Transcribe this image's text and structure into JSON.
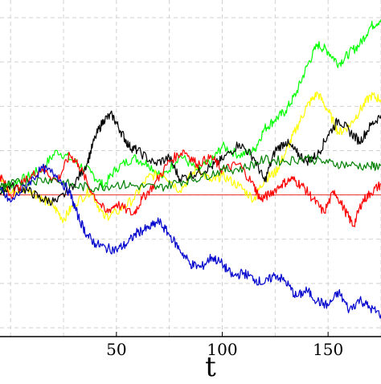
{
  "chart_data": {
    "type": "line",
    "xlabel": "t",
    "ylabel": "",
    "title": "",
    "xlim": [
      -5,
      175
    ],
    "ylim": [
      -1.6,
      2.2
    ],
    "xticks": [
      50,
      100,
      150
    ],
    "grid": true,
    "grid_style": "dashed",
    "legend": false,
    "reference_line": {
      "y": 0,
      "color": "#e8332a"
    },
    "series": [
      {
        "color": "#00ff00",
        "x": [
          -5,
          0,
          8,
          15,
          22,
          30,
          38,
          44,
          50,
          58,
          65,
          72,
          80,
          88,
          95,
          100,
          108,
          115,
          120,
          125,
          130,
          135,
          140,
          145,
          150,
          155,
          160,
          165,
          170,
          175
        ],
        "y": [
          0.05,
          0.12,
          0.2,
          0.3,
          0.5,
          0.38,
          0.25,
          0.1,
          0.3,
          0.42,
          0.35,
          0.2,
          0.45,
          0.28,
          0.38,
          0.55,
          0.45,
          0.5,
          0.75,
          0.85,
          0.95,
          1.15,
          1.45,
          1.7,
          1.62,
          1.48,
          1.6,
          1.7,
          1.9,
          1.98
        ]
      },
      {
        "color": "#ffff00",
        "x": [
          -5,
          0,
          8,
          15,
          20,
          25,
          30,
          38,
          44,
          50,
          58,
          65,
          72,
          80,
          88,
          95,
          100,
          108,
          115,
          120,
          125,
          130,
          135,
          140,
          145,
          150,
          155,
          160,
          165,
          170,
          175
        ],
        "y": [
          0.18,
          0.02,
          0.08,
          -0.05,
          -0.12,
          -0.28,
          -0.1,
          0.05,
          -0.25,
          -0.2,
          -0.05,
          0.2,
          0.25,
          0.05,
          0.3,
          0.15,
          0.22,
          0.1,
          -0.05,
          0.18,
          0.25,
          0.48,
          0.75,
          1.0,
          1.15,
          0.95,
          0.7,
          0.78,
          0.95,
          1.12,
          1.08
        ]
      },
      {
        "color": "#000000",
        "x": [
          -5,
          0,
          8,
          15,
          22,
          30,
          36,
          40,
          44,
          48,
          52,
          56,
          60,
          68,
          75,
          80,
          88,
          95,
          100,
          108,
          115,
          120,
          125,
          130,
          135,
          140,
          145,
          150,
          155,
          160,
          165,
          170,
          175
        ],
        "y": [
          0.02,
          0.1,
          0.05,
          -0.05,
          -0.08,
          0.12,
          0.35,
          0.65,
          0.85,
          0.9,
          0.72,
          0.55,
          0.5,
          0.35,
          0.42,
          0.18,
          0.25,
          0.32,
          0.4,
          0.58,
          0.42,
          0.15,
          0.5,
          0.6,
          0.48,
          0.38,
          0.45,
          0.68,
          0.85,
          0.72,
          0.6,
          0.78,
          0.9
        ]
      },
      {
        "color": "#ff0000",
        "x": [
          -5,
          0,
          8,
          15,
          22,
          28,
          32,
          38,
          45,
          50,
          58,
          62,
          68,
          75,
          82,
          88,
          95,
          100,
          108,
          115,
          118,
          122,
          128,
          133,
          138,
          143,
          148,
          153,
          158,
          162,
          166,
          170,
          175
        ],
        "y": [
          0.22,
          0.0,
          0.18,
          0.3,
          0.15,
          0.45,
          0.35,
          0.05,
          -0.2,
          -0.1,
          -0.22,
          -0.05,
          0.12,
          0.38,
          0.5,
          0.35,
          0.42,
          0.28,
          0.35,
          0.1,
          -0.05,
          0.0,
          0.12,
          0.18,
          0.1,
          -0.05,
          -0.2,
          0.05,
          -0.18,
          -0.35,
          -0.08,
          0.02,
          0.12
        ]
      },
      {
        "color": "#008000",
        "x": [
          -5,
          0,
          10,
          20,
          30,
          40,
          50,
          60,
          70,
          80,
          90,
          100,
          110,
          120,
          130,
          140,
          150,
          160,
          170,
          175
        ],
        "y": [
          0.1,
          0.12,
          0.16,
          0.18,
          0.1,
          0.08,
          0.12,
          0.1,
          0.08,
          0.15,
          0.2,
          0.28,
          0.3,
          0.4,
          0.38,
          0.42,
          0.36,
          0.34,
          0.32,
          0.33
        ]
      },
      {
        "color": "#0000cd",
        "x": [
          -5,
          0,
          8,
          15,
          22,
          28,
          32,
          36,
          40,
          45,
          50,
          55,
          60,
          65,
          70,
          75,
          80,
          85,
          90,
          95,
          100,
          105,
          110,
          115,
          120,
          125,
          130,
          135,
          140,
          145,
          150,
          155,
          160,
          165,
          170,
          175
        ],
        "y": [
          0.05,
          -0.08,
          0.12,
          0.3,
          0.22,
          0.02,
          -0.25,
          -0.45,
          -0.55,
          -0.6,
          -0.62,
          -0.55,
          -0.42,
          -0.38,
          -0.3,
          -0.45,
          -0.62,
          -0.78,
          -0.82,
          -0.7,
          -0.78,
          -0.92,
          -0.88,
          -0.95,
          -1.0,
          -0.9,
          -0.98,
          -1.15,
          -1.08,
          -1.2,
          -1.25,
          -1.1,
          -1.3,
          -1.18,
          -1.28,
          -1.35
        ]
      }
    ]
  }
}
